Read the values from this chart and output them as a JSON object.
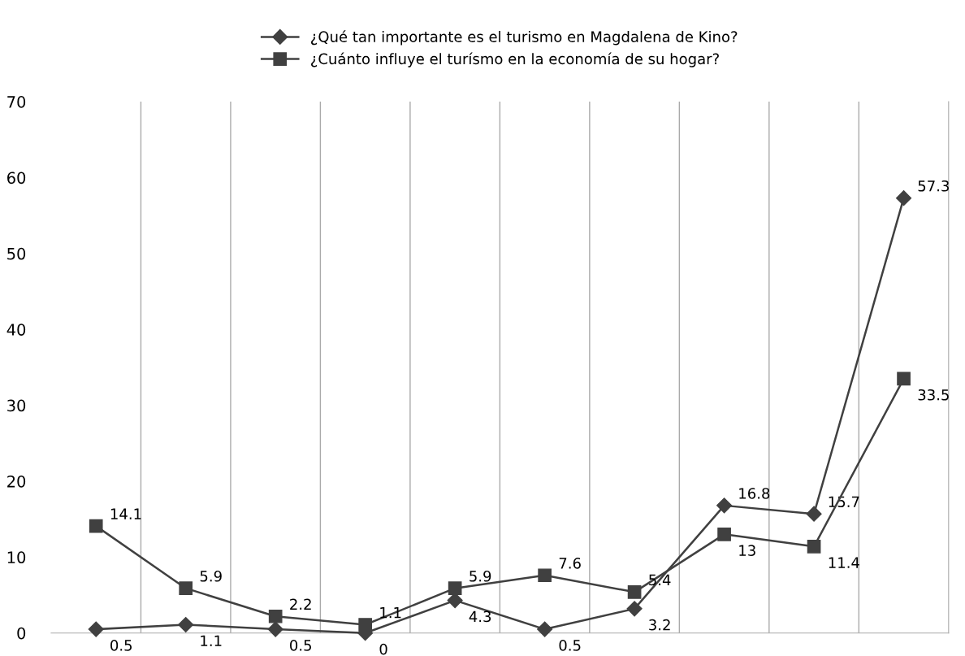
{
  "chart_data": {
    "type": "line",
    "categories": [
      null,
      null,
      null,
      null,
      null,
      null,
      null,
      null,
      null,
      null
    ],
    "series": [
      {
        "name": "¿Qué tan importante es el turismo en Magdalena de Kino?",
        "color": "#404040",
        "marker": "diamond",
        "values": [
          0.5,
          1.1,
          0.5,
          0,
          4.3,
          0.5,
          3.2,
          16.8,
          15.7,
          57.3
        ]
      },
      {
        "name": "¿Cuánto influye el turísmo en la economía de su hogar?",
        "color": "#404040",
        "marker": "square",
        "values": [
          14.1,
          5.9,
          2.2,
          1.1,
          5.9,
          7.6,
          5.4,
          13,
          11.4,
          33.5
        ]
      }
    ],
    "ylim": [
      0,
      70
    ],
    "yticks": [
      0,
      10,
      20,
      30,
      40,
      50,
      60,
      70
    ],
    "grid": "x",
    "legend": "top",
    "data_labels": true,
    "line_style": "solid"
  }
}
